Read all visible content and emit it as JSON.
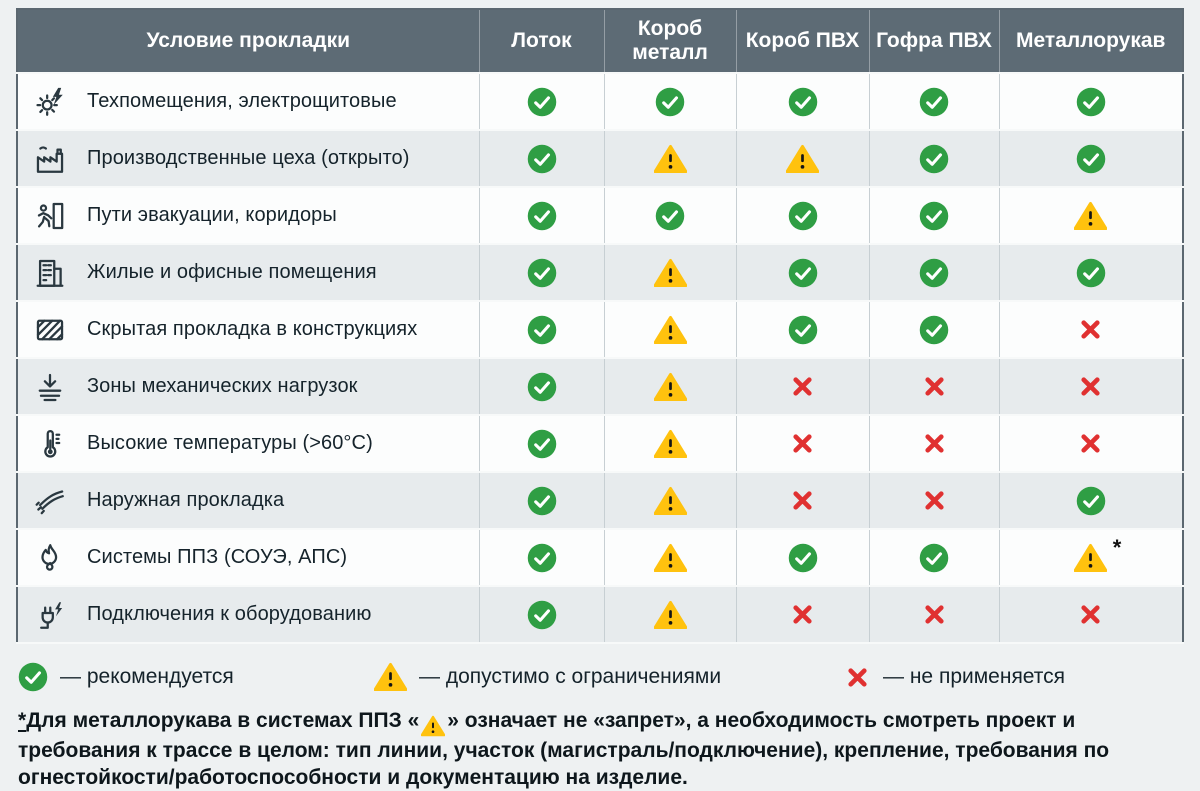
{
  "chart_data": {
    "type": "table",
    "header": {
      "condition": "Условие прокладки",
      "columns": [
        "Лоток",
        "Короб металл",
        "Короб ПВХ",
        "Гофра ПВХ",
        "Металлорукав"
      ]
    },
    "mark_values": {
      "check": "рекомендуется",
      "warn": "допустимо с ограничениями",
      "cross": "не применяется",
      "warn-asterisk": "допустимо с ограничениями (см. сноску *)"
    },
    "rows": [
      {
        "icon": "gear-bolt-icon",
        "label": "Техпомещения, электрощитовые",
        "marks": [
          "check",
          "check",
          "check",
          "check",
          "check"
        ]
      },
      {
        "icon": "factory-icon",
        "label": "Производственные цеха (открыто)",
        "marks": [
          "check",
          "warn",
          "warn",
          "check",
          "check"
        ]
      },
      {
        "icon": "evacuation-icon",
        "label": "Пути эвакуации, коридоры",
        "marks": [
          "check",
          "check",
          "check",
          "check",
          "warn"
        ]
      },
      {
        "icon": "building-icon",
        "label": "Жилые и офисные помещения",
        "marks": [
          "check",
          "warn",
          "check",
          "check",
          "check"
        ]
      },
      {
        "icon": "hidden-conduit-icon",
        "label": "Скрытая прокладка в конструкциях",
        "marks": [
          "check",
          "warn",
          "check",
          "check",
          "cross"
        ]
      },
      {
        "icon": "mechanical-load-icon",
        "label": "Зоны механических нагрузок",
        "marks": [
          "check",
          "warn",
          "cross",
          "cross",
          "cross"
        ]
      },
      {
        "icon": "thermometer-icon",
        "label": "Высокие температуры (>60°C)",
        "marks": [
          "check",
          "warn",
          "cross",
          "cross",
          "cross"
        ]
      },
      {
        "icon": "outdoor-cable-icon",
        "label": "Наружная прокладка",
        "marks": [
          "check",
          "warn",
          "cross",
          "cross",
          "check"
        ]
      },
      {
        "icon": "fire-icon",
        "label": "Системы ППЗ (СОУЭ, АПС)",
        "marks": [
          "check",
          "warn",
          "check",
          "check",
          "warn-asterisk"
        ]
      },
      {
        "icon": "plug-bolt-icon",
        "label": "Подключения к оборудованию",
        "marks": [
          "check",
          "warn",
          "cross",
          "cross",
          "cross"
        ]
      }
    ],
    "legend": [
      {
        "mark": "check",
        "label": "— рекомендуется"
      },
      {
        "mark": "warn",
        "label": "— допустимо с ограничениями"
      },
      {
        "mark": "cross",
        "label": "— не применяется"
      }
    ],
    "footnote": {
      "asterisk": "*",
      "part1": "Для металлорукава в системах ППЗ «",
      "part2": "» означает не «запрет», а необходимость смотреть проект и требования к трассе в целом: тип линии, участок (магистраль/подключение), крепление, требования по огнестойкости/работоспособности и документацию на изделие."
    }
  },
  "colors": {
    "check_green": "#2f9e44",
    "warn_yellow": "#ffc20e",
    "cross_red": "#e03131",
    "header_bg": "#5d6b75"
  }
}
